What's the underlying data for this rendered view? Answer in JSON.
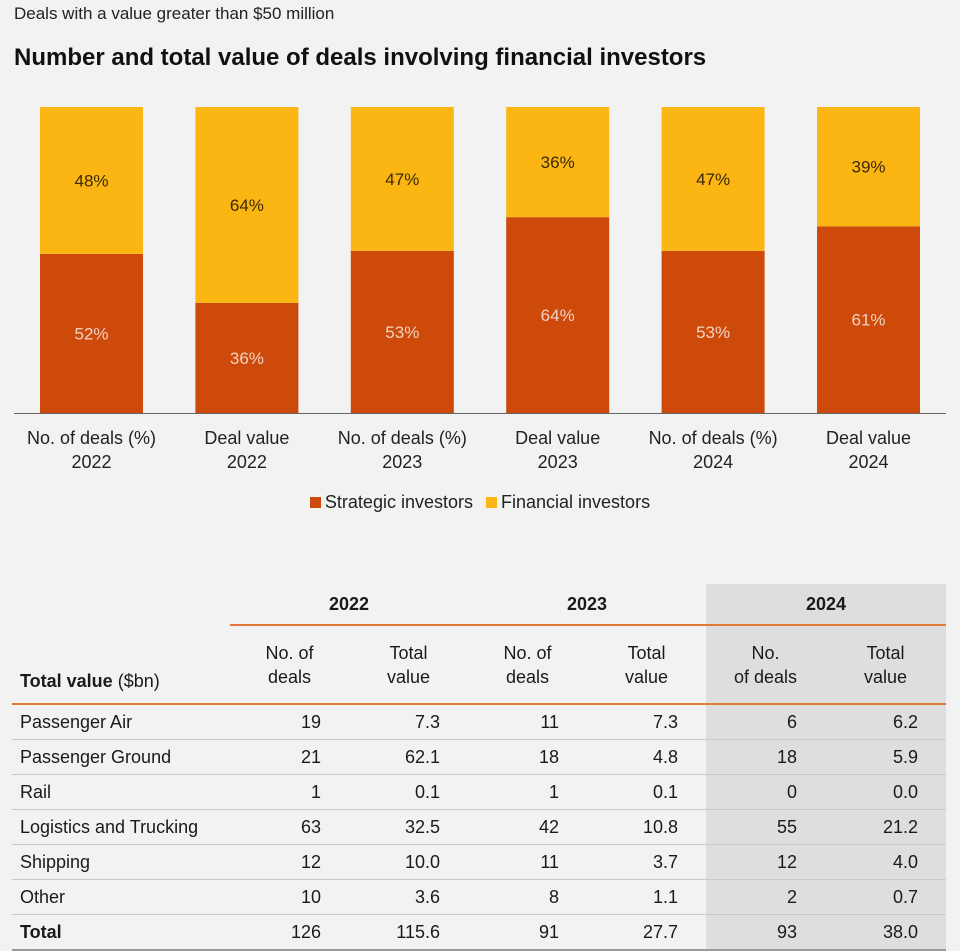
{
  "subtitle": "Deals with a value greater than $50 million",
  "title": "Number and total value of deals involving financial investors",
  "colors": {
    "strategic": "#cd4a0a",
    "financial": "#fbb614"
  },
  "chart_data": {
    "type": "bar",
    "stacked": true,
    "categories": [
      [
        "No. of deals (%)",
        "2022"
      ],
      [
        "Deal value",
        "2022"
      ],
      [
        "No. of deals (%)",
        "2023"
      ],
      [
        "Deal value",
        "2023"
      ],
      [
        "No. of deals (%)",
        "2024"
      ],
      [
        "Deal value",
        "2024"
      ]
    ],
    "series": [
      {
        "name": "Strategic investors",
        "values": [
          52,
          36,
          53,
          64,
          53,
          61
        ],
        "labels": [
          "52%",
          "36%",
          "53%",
          "64%",
          "53%",
          "61%"
        ]
      },
      {
        "name": "Financial investors",
        "values": [
          48,
          64,
          47,
          36,
          47,
          39
        ],
        "labels": [
          "48%",
          "64%",
          "47%",
          "36%",
          "47%",
          "39%"
        ]
      }
    ],
    "ylim": [
      0,
      100
    ],
    "legend": "bottom-center",
    "grid": false
  },
  "table": {
    "years": [
      "2022",
      "2023",
      "2024"
    ],
    "corner_label_bold": "Total value",
    "corner_label_rest": " ($bn)",
    "col_headers": [
      [
        "No. of",
        "deals"
      ],
      [
        "Total",
        "value"
      ],
      [
        "No. of",
        "deals"
      ],
      [
        "Total",
        "value"
      ],
      [
        "No.",
        "of deals"
      ],
      [
        "Total",
        "value"
      ]
    ],
    "rows": [
      {
        "label": "Passenger Air",
        "values": [
          "19",
          "7.3",
          "11",
          "7.3",
          "6",
          "6.2"
        ]
      },
      {
        "label": "Passenger Ground",
        "values": [
          "21",
          "62.1",
          "18",
          "4.8",
          "18",
          "5.9"
        ]
      },
      {
        "label": "Rail",
        "values": [
          "1",
          "0.1",
          "1",
          "0.1",
          "0",
          "0.0"
        ]
      },
      {
        "label": "Logistics and Trucking",
        "values": [
          "63",
          "32.5",
          "42",
          "10.8",
          "55",
          "21.2"
        ]
      },
      {
        "label": "Shipping",
        "values": [
          "12",
          "10.0",
          "11",
          "3.7",
          "12",
          "4.0"
        ]
      },
      {
        "label": "Other",
        "values": [
          "10",
          "3.6",
          "8",
          "1.1",
          "2",
          "0.7"
        ]
      },
      {
        "label": "Total",
        "values": [
          "126",
          "115.6",
          "91",
          "27.7",
          "93",
          "38.0"
        ]
      }
    ]
  }
}
